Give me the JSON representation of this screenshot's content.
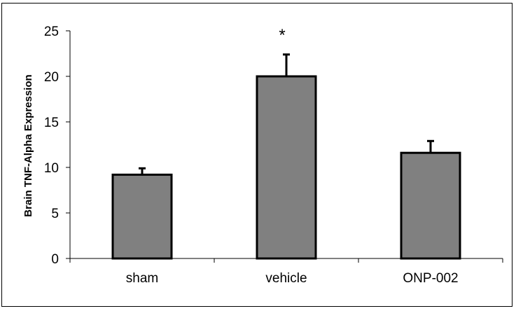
{
  "chart_data": {
    "type": "bar",
    "title": "",
    "xlabel": "",
    "ylabel": "Brain TNF-Alpha Expression",
    "categories": [
      "sham",
      "vehicle",
      "ONP-002"
    ],
    "values": [
      9.2,
      20.0,
      11.6
    ],
    "errors": [
      0.7,
      2.4,
      1.3
    ],
    "annotations": [
      {
        "category": "vehicle",
        "text": "*"
      }
    ],
    "ylim": [
      0,
      25
    ],
    "yticks": [
      0,
      5,
      10,
      15,
      20,
      25
    ],
    "grid": false,
    "bar_color": "#808080",
    "bar_edge_color": "#000000"
  }
}
